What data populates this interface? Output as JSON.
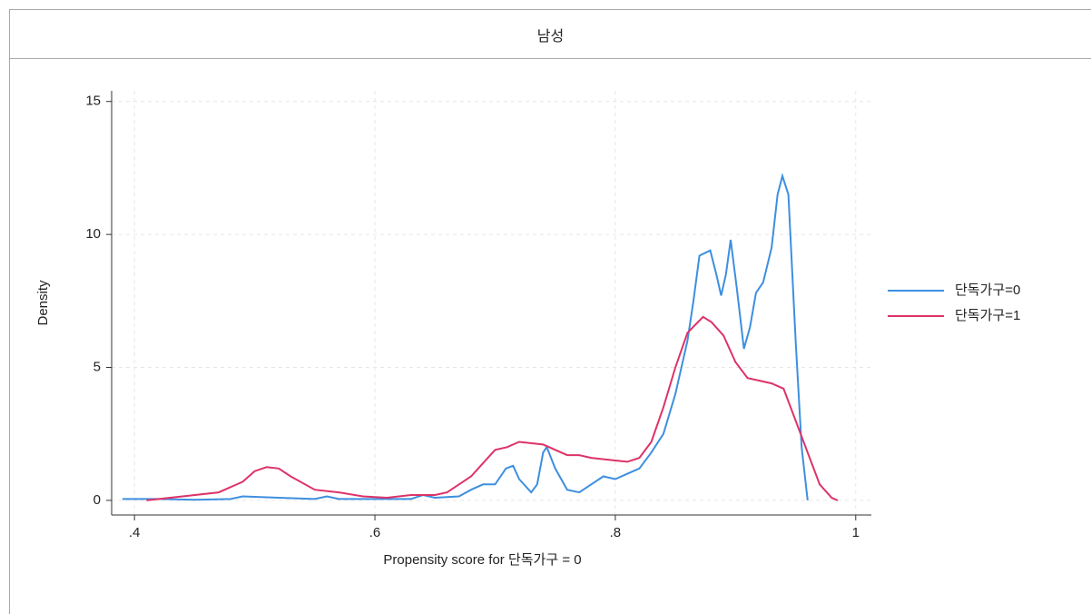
{
  "chart_data": {
    "type": "line",
    "title": "남성",
    "xlabel": "Propensity score for 단독가구 = 0",
    "ylabel": "Density",
    "xlim": [
      0.381,
      1.013
    ],
    "ylim": [
      -0.55,
      15.4
    ],
    "xticks": [
      {
        "value": 0.4,
        "label": ".4"
      },
      {
        "value": 0.6,
        "label": ".6"
      },
      {
        "value": 0.8,
        "label": ".8"
      },
      1
    ],
    "yticks": [
      0,
      5,
      10,
      15
    ],
    "grid": true,
    "legend": "right",
    "series": [
      {
        "name": "단독가구=0",
        "color": "#3d8fe0",
        "x": [
          0.39,
          0.42,
          0.45,
          0.48,
          0.49,
          0.52,
          0.55,
          0.56,
          0.57,
          0.6,
          0.63,
          0.64,
          0.65,
          0.67,
          0.68,
          0.69,
          0.7,
          0.709,
          0.715,
          0.72,
          0.73,
          0.735,
          0.74,
          0.743,
          0.75,
          0.76,
          0.77,
          0.78,
          0.79,
          0.8,
          0.81,
          0.82,
          0.83,
          0.84,
          0.85,
          0.86,
          0.865,
          0.87,
          0.879,
          0.884,
          0.888,
          0.892,
          0.896,
          0.901,
          0.907,
          0.912,
          0.917,
          0.923,
          0.93,
          0.935,
          0.939,
          0.944,
          0.95,
          0.955,
          0.96
        ],
        "values": [
          0.05,
          0.05,
          0.02,
          0.05,
          0.15,
          0.1,
          0.05,
          0.15,
          0.05,
          0.05,
          0.05,
          0.2,
          0.1,
          0.15,
          0.4,
          0.6,
          0.6,
          1.2,
          1.3,
          0.8,
          0.3,
          0.6,
          1.8,
          2.0,
          1.2,
          0.4,
          0.3,
          0.6,
          0.9,
          0.8,
          1.0,
          1.2,
          1.8,
          2.5,
          4,
          6,
          7.5,
          9.2,
          9.4,
          8.5,
          7.7,
          8.5,
          9.8,
          8,
          5.7,
          6.5,
          7.8,
          8.2,
          9.5,
          11.5,
          12.2,
          11.5,
          6,
          2,
          0
        ]
      },
      {
        "name": "단독가구=1",
        "color": "#dd3368",
        "x": [
          0.41,
          0.44,
          0.47,
          0.49,
          0.5,
          0.51,
          0.52,
          0.53,
          0.55,
          0.57,
          0.59,
          0.61,
          0.63,
          0.65,
          0.66,
          0.68,
          0.69,
          0.7,
          0.71,
          0.72,
          0.74,
          0.76,
          0.77,
          0.78,
          0.8,
          0.81,
          0.82,
          0.83,
          0.84,
          0.85,
          0.86,
          0.873,
          0.88,
          0.89,
          0.9,
          0.91,
          0.92,
          0.93,
          0.94,
          0.95,
          0.96,
          0.97,
          0.98,
          0.985
        ],
        "values": [
          0,
          0.15,
          0.3,
          0.7,
          1.1,
          1.25,
          1.2,
          0.9,
          0.4,
          0.3,
          0.15,
          0.1,
          0.2,
          0.2,
          0.3,
          0.9,
          1.4,
          1.9,
          2.0,
          2.2,
          2.1,
          1.7,
          1.7,
          1.6,
          1.5,
          1.45,
          1.6,
          2.2,
          3.5,
          5,
          6.3,
          6.9,
          6.7,
          6.2,
          5.2,
          4.6,
          4.5,
          4.4,
          4.2,
          3.0,
          1.8,
          0.6,
          0.1,
          0
        ]
      }
    ]
  }
}
